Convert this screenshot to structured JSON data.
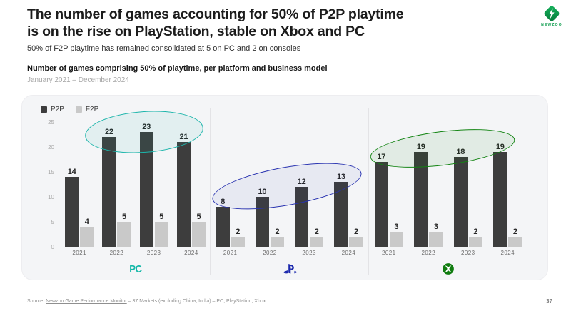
{
  "logo": {
    "name": "Newzoo",
    "text": "NEWZOO",
    "color": "#0a9b4b"
  },
  "header": {
    "title_line1": "The number of games accounting for 50% of P2P playtime",
    "title_line2": "is on the rise on PlayStation, stable on Xbox and PC",
    "subtitle": "50% of F2P playtime has remained consolidated at 5 on PC and 2 on consoles"
  },
  "chart_header": {
    "title": "Number of games comprising 50% of playtime, per platform and business model",
    "period": "January 2021 – December 2024"
  },
  "legend": [
    {
      "label": "P2P",
      "color": "#3d3d3d"
    },
    {
      "label": "F2P",
      "color": "#c9c9c9"
    }
  ],
  "chart_data": {
    "type": "bar",
    "title": "Number of games comprising 50% of playtime, per platform and business model",
    "subtitle": "January 2021 – December 2024",
    "categories": [
      "2021",
      "2022",
      "2023",
      "2024"
    ],
    "ylim": [
      0,
      25
    ],
    "yticks": [
      0,
      5,
      10,
      15,
      20,
      25
    ],
    "grid": false,
    "legend_position": "top-left",
    "series_colors": {
      "P2P": "#3d3d3d",
      "F2P": "#c9c9c9"
    },
    "panels": [
      {
        "platform": "PC",
        "accent": "#14b8a8",
        "series": [
          {
            "name": "P2P",
            "values": [
              14,
              22,
              23,
              21
            ]
          },
          {
            "name": "F2P",
            "values": [
              4,
              5,
              5,
              5
            ]
          }
        ]
      },
      {
        "platform": "PlayStation",
        "accent": "#1b28ad",
        "series": [
          {
            "name": "P2P",
            "values": [
              8,
              10,
              12,
              13
            ]
          },
          {
            "name": "F2P",
            "values": [
              2,
              2,
              2,
              2
            ]
          }
        ]
      },
      {
        "platform": "Xbox",
        "accent": "#107c10",
        "series": [
          {
            "name": "P2P",
            "values": [
              17,
              19,
              18,
              19
            ]
          },
          {
            "name": "F2P",
            "values": [
              3,
              3,
              2,
              2
            ]
          }
        ]
      }
    ],
    "highlights": [
      {
        "panel": "PC",
        "color": "#1db5ab",
        "fill": "rgba(29,181,171,0.08)"
      },
      {
        "panel": "PlayStation",
        "color": "#2832b0",
        "fill": "rgba(40,50,176,0.06)"
      },
      {
        "panel": "Xbox",
        "color": "#128412",
        "fill": "rgba(18,132,18,0.08)"
      }
    ]
  },
  "footer": {
    "source_prefix": "Source: ",
    "source_link": "Newzoo Game Performance Monitor",
    "source_suffix": " – 37 Markets (excluding China, India) – PC, PlayStation, Xbox",
    "page_number": "37"
  }
}
